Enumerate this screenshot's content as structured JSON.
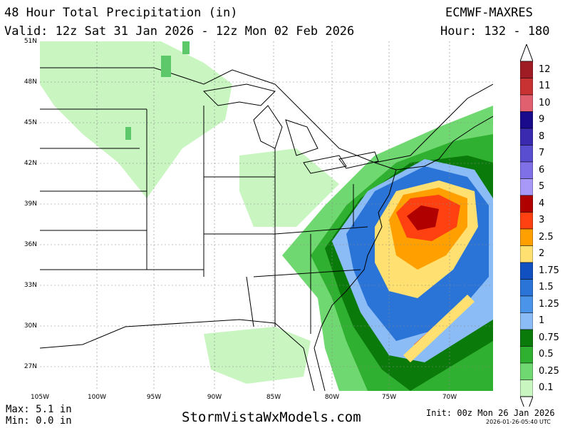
{
  "header": {
    "title": "48 Hour Total Precipitation (in)",
    "model": "ECMWF-MAXRES",
    "valid": "Valid: 12z Sat 31 Jan 2026 - 12z Mon 02 Feb 2026",
    "hour": "Hour: 132 - 180"
  },
  "map": {
    "lat_labels": [
      "51N",
      "48N",
      "45N",
      "42N",
      "39N",
      "36N",
      "33N",
      "30N",
      "27N"
    ],
    "lon_labels": [
      "105W",
      "100W",
      "95W",
      "90W",
      "85W",
      "80W",
      "75W",
      "70W"
    ],
    "colors": {
      "land": "#ffffff",
      "water": "#ffffff",
      "border": "#000000",
      "grid": "#888888"
    }
  },
  "legend": {
    "labels": [
      "12",
      "11",
      "10",
      "9",
      "8",
      "7",
      "6",
      "5",
      "4",
      "3",
      "2.5",
      "2",
      "1.75",
      "1.5",
      "1.25",
      "1",
      "0.75",
      "0.5",
      "0.25",
      "0.1"
    ],
    "colors": [
      "#a01c24",
      "#c83232",
      "#e06070",
      "#1a0a8c",
      "#3a2ab0",
      "#5a4ed0",
      "#8070e8",
      "#a898f8",
      "#b00000",
      "#ff4010",
      "#ffa000",
      "#ffe070",
      "#1050c0",
      "#2a74d8",
      "#4a94ea",
      "#8cbcf5",
      "#0a7a0a",
      "#30b030",
      "#70d870",
      "#c8f5c0"
    ]
  },
  "footer": {
    "max": "Max: 5.1 in",
    "min": "Min: 0.0 in",
    "site": "StormVistaWxModels.com",
    "init": "Init: 00z Mon 26 Jan 2026",
    "stamp": "2026-01-26-05:40 UTC"
  }
}
